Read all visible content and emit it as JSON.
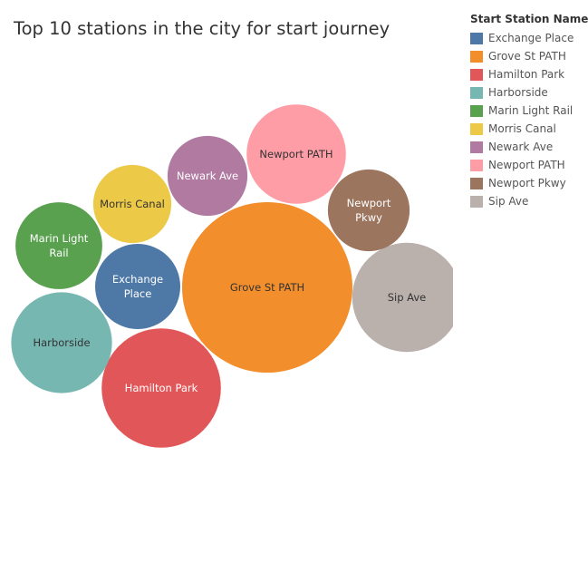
{
  "chart_data": {
    "type": "bubble",
    "title": "Top 10 stations in the city for start journey",
    "legend": {
      "title": "Start Station Name",
      "placement": "top-right",
      "entries": [
        {
          "name": "Exchange Place",
          "color": "#4e79a7"
        },
        {
          "name": "Grove St PATH",
          "color": "#f28e2b"
        },
        {
          "name": "Hamilton Park",
          "color": "#e15759"
        },
        {
          "name": "Harborside",
          "color": "#76b7b2"
        },
        {
          "name": "Marin Light Rail",
          "color": "#59a14f"
        },
        {
          "name": "Morris Canal",
          "color": "#edc948"
        },
        {
          "name": "Newark Ave",
          "color": "#b07aa1"
        },
        {
          "name": "Newport PATH",
          "color": "#ff9da7"
        },
        {
          "name": "Newport Pkwy",
          "color": "#9c755f"
        },
        {
          "name": "Sip Ave",
          "color": "#bab0ac"
        }
      ]
    },
    "bubbles": [
      {
        "name": "Grove St PATH",
        "label_lines": [
          "Grove St PATH"
        ],
        "value": 100,
        "color": "#f28e2b",
        "label_color": "#333333"
      },
      {
        "name": "Hamilton Park",
        "label_lines": [
          "Hamilton Park"
        ],
        "value": 49,
        "color": "#e15759",
        "label_color": "#ffffff"
      },
      {
        "name": "Newport PATH",
        "label_lines": [
          "Newport PATH"
        ],
        "value": 34,
        "color": "#ff9da7",
        "label_color": "#333333"
      },
      {
        "name": "Sip Ave",
        "label_lines": [
          "Sip Ave"
        ],
        "value": 41,
        "color": "#bab0ac",
        "label_color": "#333333"
      },
      {
        "name": "Harborside",
        "label_lines": [
          "Harborside"
        ],
        "value": 35,
        "color": "#76b7b2",
        "label_color": "#333333"
      },
      {
        "name": "Exchange Place",
        "label_lines": [
          "Exchange",
          "Place"
        ],
        "value": 25,
        "color": "#4e79a7",
        "label_color": "#ffffff"
      },
      {
        "name": "Marin Light Rail",
        "label_lines": [
          "Marin Light",
          "Rail"
        ],
        "value": 26,
        "color": "#59a14f",
        "label_color": "#ffffff"
      },
      {
        "name": "Morris Canal",
        "label_lines": [
          "Morris Canal"
        ],
        "value": 21,
        "color": "#edc948",
        "label_color": "#333333"
      },
      {
        "name": "Newark Ave",
        "label_lines": [
          "Newark Ave"
        ],
        "value": 22,
        "color": "#b07aa1",
        "label_color": "#ffffff"
      },
      {
        "name": "Newport Pkwy",
        "label_lines": [
          "Newport",
          "Pkwy"
        ],
        "value": 23,
        "color": "#9c755f",
        "label_color": "#ffffff"
      }
    ]
  }
}
